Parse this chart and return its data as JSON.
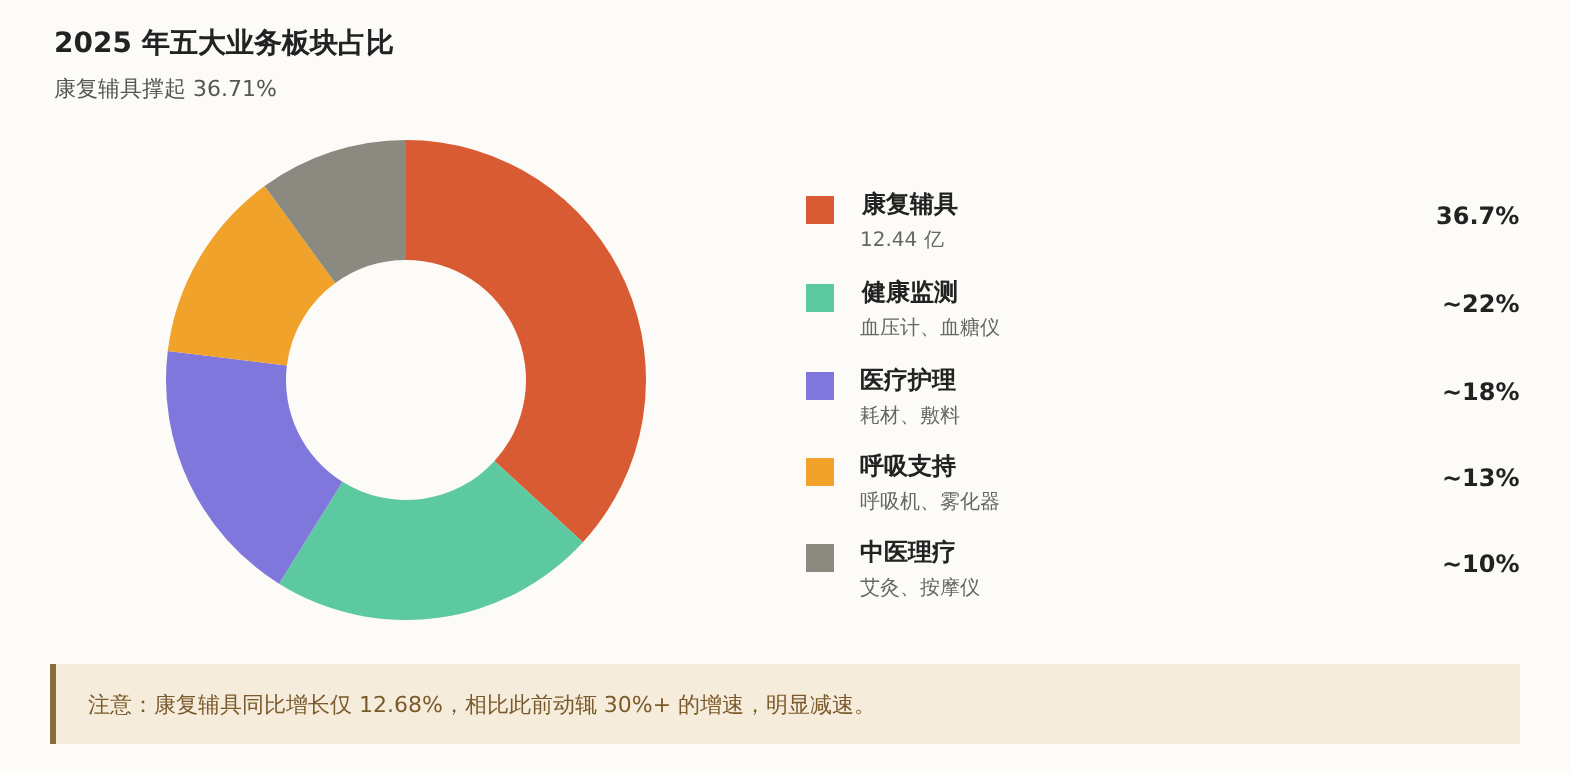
{
  "chart_data": {
    "type": "donut",
    "title": "2025 年五大业务板块占比",
    "subtitle": "康复辅具撑起 36.71%",
    "categories": [
      "康复辅具",
      "健康监测",
      "医疗护理",
      "呼吸支持",
      "中医理疗"
    ],
    "values": [
      36.7,
      22,
      18,
      13,
      10
    ],
    "value_labels": [
      "36.7%",
      "~22%",
      "~18%",
      "~13%",
      "~10%"
    ],
    "colors": [
      "#d95b33",
      "#5dc9a0",
      "#8077dd",
      "#f0a22a",
      "#8a8a80"
    ],
    "legend": "right",
    "annotations": [
      "12.44 亿",
      "血压计、血糖仪",
      "耗材、敷料",
      "呼吸机、雾化器",
      "艾灸、按摩仪",
      "注意：康复辅具同比增长仅 12.68%，相比此前动辄 30%+ 的增速，明显减速。"
    ]
  }
}
